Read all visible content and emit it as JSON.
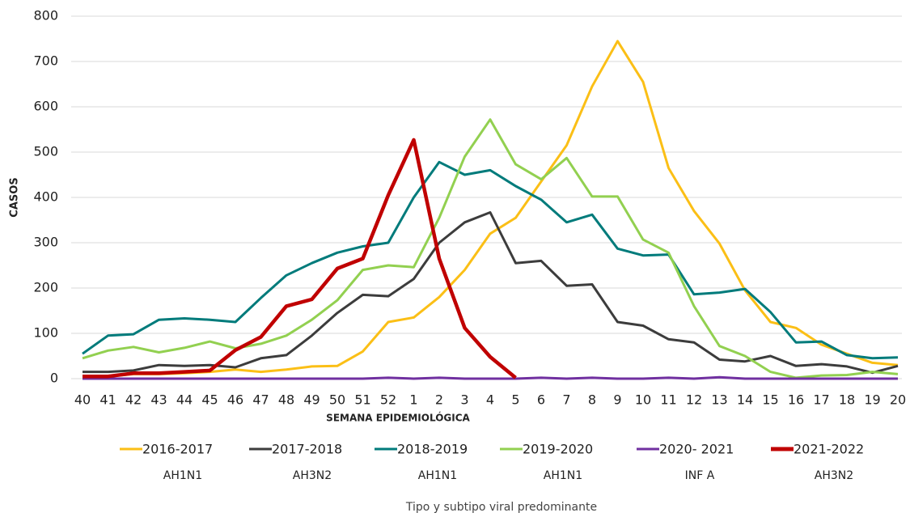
{
  "chart_data": {
    "type": "line",
    "y_label": "CASOS",
    "x_label": "SEMANA EPIDEMIOLÓGICA",
    "categories": [
      "40",
      "41",
      "42",
      "43",
      "44",
      "45",
      "46",
      "47",
      "48",
      "49",
      "50",
      "51",
      "52",
      "1",
      "2",
      "3",
      "4",
      "5",
      "6",
      "7",
      "8",
      "9",
      "10",
      "11",
      "12",
      "13",
      "14",
      "15",
      "16",
      "17",
      "18",
      "19",
      "20"
    ],
    "series": [
      {
        "name": "2016-2017",
        "color": "#fbbf16",
        "values": [
          5,
          5,
          10,
          10,
          12,
          15,
          20,
          15,
          20,
          27,
          28,
          60,
          125,
          135,
          180,
          240,
          320,
          355,
          435,
          515,
          645,
          745,
          655,
          465,
          370,
          298,
          195,
          125,
          112,
          75,
          55,
          35,
          30
        ]
      },
      {
        "name": "2017-2018",
        "color": "#3c3c3c",
        "values": [
          15,
          15,
          18,
          30,
          28,
          30,
          25,
          45,
          52,
          95,
          145,
          185,
          182,
          220,
          300,
          345,
          367,
          255,
          260,
          205,
          208,
          125,
          117,
          87,
          80,
          42,
          38,
          50,
          28,
          32,
          27,
          13,
          28
        ]
      },
      {
        "name": "2018-2019",
        "color": "#007b7b",
        "values": [
          55,
          95,
          98,
          130,
          133,
          130,
          125,
          178,
          228,
          255,
          278,
          292,
          300,
          400,
          478,
          450,
          460,
          425,
          395,
          345,
          362,
          287,
          272,
          274,
          186,
          190,
          198,
          147,
          80,
          82,
          52,
          45,
          47
        ]
      },
      {
        "name": "2019-2020",
        "color": "#92d050",
        "values": [
          45,
          62,
          70,
          58,
          68,
          82,
          67,
          77,
          95,
          130,
          173,
          240,
          250,
          246,
          355,
          490,
          572,
          473,
          440,
          487,
          402,
          402,
          307,
          278,
          160,
          72,
          50,
          15,
          2,
          7,
          8,
          15,
          10
        ]
      },
      {
        "name": "2020- 2021",
        "color": "#7030a0",
        "values": [
          0,
          0,
          0,
          0,
          0,
          0,
          0,
          0,
          0,
          0,
          0,
          0,
          2,
          0,
          2,
          0,
          0,
          0,
          2,
          0,
          2,
          0,
          0,
          2,
          0,
          3,
          0,
          0,
          0,
          0,
          0,
          0,
          0
        ]
      },
      {
        "name": "2021-2022",
        "color": "#c00000",
        "values": [
          5,
          5,
          12,
          12,
          15,
          18,
          63,
          92,
          160,
          175,
          243,
          265,
          405,
          527,
          265,
          112,
          48,
          2,
          null,
          null,
          null,
          null,
          null,
          null,
          null,
          null,
          null,
          null,
          null,
          null,
          null,
          null,
          null
        ]
      }
    ],
    "subtypes": [
      "AH1N1",
      "AH3N2",
      "AH1N1",
      "AH1N1",
      "INF A",
      "AH3N2"
    ],
    "subtype_title": "Tipo y subtipo viral predominante",
    "ylim": [
      0,
      800
    ],
    "yticks": [
      0,
      100,
      200,
      300,
      400,
      500,
      600,
      700,
      800
    ],
    "grid": true
  }
}
